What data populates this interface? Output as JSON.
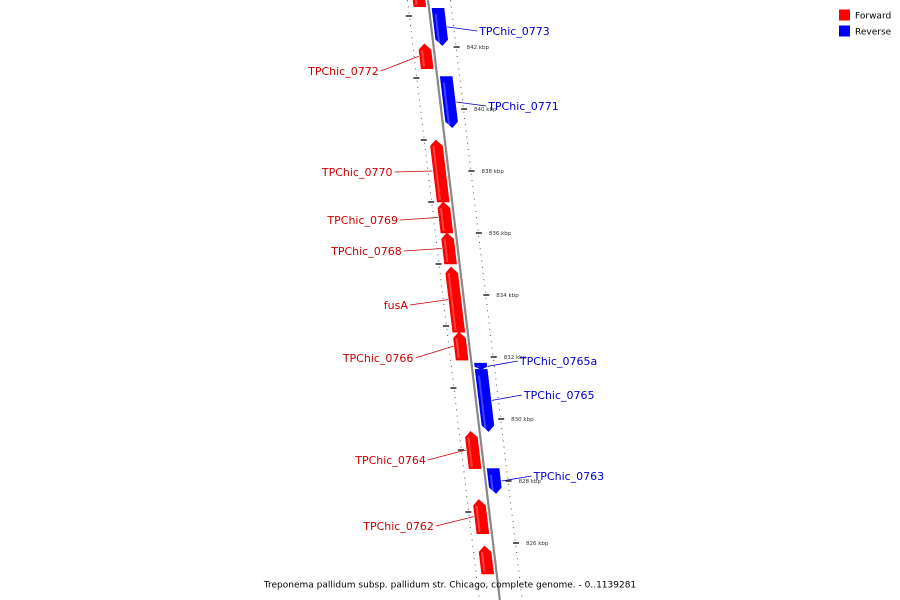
{
  "caption": "Treponema pallidum subsp. pallidum str. Chicago, complete genome. - 0..1139281",
  "legend": [
    {
      "label": "Forward",
      "color": "#ff0000"
    },
    {
      "label": "Reverse",
      "color": "#0000ff"
    }
  ],
  "colors": {
    "forward": "#ff0000",
    "reverse": "#0000ff",
    "forward_label": "#cc0000",
    "reverse_label": "#0000cc",
    "backbone": "#888888"
  },
  "genes": [
    {
      "id": "top_partial",
      "label": "",
      "strand": "forward",
      "start_kbp": 843.3,
      "end_kbp": 843.8
    },
    {
      "id": "TPChic_0773",
      "label": "TPChic_0773",
      "strand": "reverse",
      "start_kbp": 842.05,
      "end_kbp": 843.25
    },
    {
      "id": "TPChic_0772",
      "label": "TPChic_0772",
      "strand": "forward",
      "start_kbp": 841.3,
      "end_kbp": 842.1
    },
    {
      "id": "TPChic_0771",
      "label": "TPChic_0771",
      "strand": "reverse",
      "start_kbp": 839.4,
      "end_kbp": 841.05
    },
    {
      "id": "TPChic_0770",
      "label": "TPChic_0770",
      "strand": "forward",
      "start_kbp": 837.0,
      "end_kbp": 839.0
    },
    {
      "id": "TPChic_0769",
      "label": "TPChic_0769",
      "strand": "forward",
      "start_kbp": 836.0,
      "end_kbp": 837.0
    },
    {
      "id": "TPChic_0768",
      "label": "TPChic_0768",
      "strand": "forward",
      "start_kbp": 835.0,
      "end_kbp": 836.0
    },
    {
      "id": "fusA",
      "label": "fusA",
      "strand": "forward",
      "start_kbp": 832.8,
      "end_kbp": 834.9
    },
    {
      "id": "TPChic_0766",
      "label": "TPChic_0766",
      "strand": "forward",
      "start_kbp": 831.9,
      "end_kbp": 832.8
    },
    {
      "id": "TPChic_0765a",
      "label": "TPChic_0765a",
      "strand": "reverse",
      "start_kbp": 831.6,
      "end_kbp": 831.8
    },
    {
      "id": "TPChic_0765",
      "label": "TPChic_0765",
      "strand": "reverse",
      "start_kbp": 829.6,
      "end_kbp": 831.6
    },
    {
      "id": "TPChic_0764",
      "label": "TPChic_0764",
      "strand": "forward",
      "start_kbp": 828.4,
      "end_kbp": 829.6
    },
    {
      "id": "TPChic_0763",
      "label": "TPChic_0763",
      "strand": "reverse",
      "start_kbp": 827.6,
      "end_kbp": 828.4
    },
    {
      "id": "TPChic_0762",
      "label": "TPChic_0762",
      "strand": "forward",
      "start_kbp": 826.3,
      "end_kbp": 827.4
    },
    {
      "id": "bottom_partial",
      "label": "",
      "strand": "forward",
      "start_kbp": 825.0,
      "end_kbp": 825.9
    }
  ],
  "ticks": [
    {
      "kbp": 842,
      "label": "842 kbp"
    },
    {
      "kbp": 840,
      "label": "840 kbp"
    },
    {
      "kbp": 838,
      "label": "838 kbp"
    },
    {
      "kbp": 836,
      "label": "836 kbp"
    },
    {
      "kbp": 834,
      "label": "834 kbp"
    },
    {
      "kbp": 832,
      "label": "832 kbp"
    },
    {
      "kbp": 830,
      "label": "830 kbp"
    },
    {
      "kbp": 828,
      "label": "828 kbp"
    },
    {
      "kbp": 826,
      "label": "826 kbp"
    }
  ]
}
